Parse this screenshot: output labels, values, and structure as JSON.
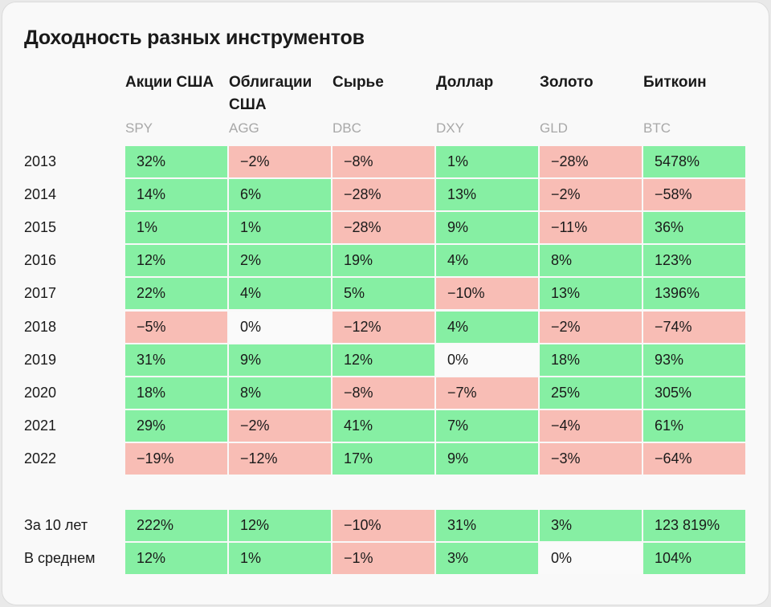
{
  "title": "Доходность разных инструментов",
  "columns": [
    {
      "name": "Акции США",
      "ticker": "SPY"
    },
    {
      "name": "Облигации США",
      "ticker": "AGG"
    },
    {
      "name": "Сырье",
      "ticker": "DBC"
    },
    {
      "name": "Доллар",
      "ticker": "DXY"
    },
    {
      "name": "Золото",
      "ticker": "GLD"
    },
    {
      "name": "Биткоин",
      "ticker": "BTC"
    }
  ],
  "rows": [
    {
      "label": "2013",
      "values": [
        "32%",
        "−2%",
        "−8%",
        "1%",
        "−28%",
        "5478%"
      ]
    },
    {
      "label": "2014",
      "values": [
        "14%",
        "6%",
        "−28%",
        "13%",
        "−2%",
        "−58%"
      ]
    },
    {
      "label": "2015",
      "values": [
        "1%",
        "1%",
        "−28%",
        "9%",
        "−11%",
        "36%"
      ]
    },
    {
      "label": "2016",
      "values": [
        "12%",
        "2%",
        "19%",
        "4%",
        "8%",
        "123%"
      ]
    },
    {
      "label": "2017",
      "values": [
        "22%",
        "4%",
        "5%",
        "−10%",
        "13%",
        "1396%"
      ]
    },
    {
      "label": "2018",
      "values": [
        "−5%",
        "0%",
        "−12%",
        "4%",
        "−2%",
        "−74%"
      ]
    },
    {
      "label": "2019",
      "values": [
        "31%",
        "9%",
        "12%",
        "0%",
        "18%",
        "93%"
      ]
    },
    {
      "label": "2020",
      "values": [
        "18%",
        "8%",
        "−8%",
        "−7%",
        "25%",
        "305%"
      ]
    },
    {
      "label": "2021",
      "values": [
        "29%",
        "−2%",
        "41%",
        "7%",
        "−4%",
        "61%"
      ]
    },
    {
      "label": "2022",
      "values": [
        "−19%",
        "−12%",
        "17%",
        "9%",
        "−3%",
        "−64%"
      ]
    }
  ],
  "summary": [
    {
      "label": "За 10 лет",
      "values": [
        "222%",
        "12%",
        "−10%",
        "31%",
        "3%",
        "123 819%"
      ]
    },
    {
      "label": "В среднем",
      "values": [
        "12%",
        "1%",
        "−1%",
        "3%",
        "0%",
        "104%"
      ]
    }
  ],
  "colors": {
    "positive": "#86efa3",
    "negative": "#f8bdb5",
    "zero": "#fafafa"
  }
}
